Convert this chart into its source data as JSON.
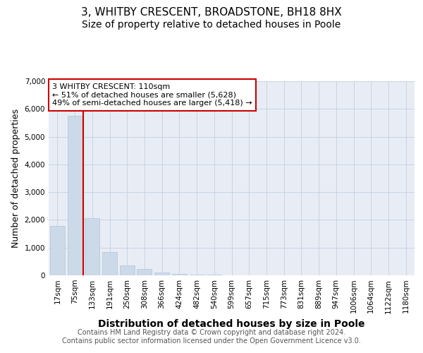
{
  "title1": "3, WHITBY CRESCENT, BROADSTONE, BH18 8HX",
  "title2": "Size of property relative to detached houses in Poole",
  "xlabel": "Distribution of detached houses by size in Poole",
  "ylabel": "Number of detached properties",
  "categories": [
    "17sqm",
    "75sqm",
    "133sqm",
    "191sqm",
    "250sqm",
    "308sqm",
    "366sqm",
    "424sqm",
    "482sqm",
    "540sqm",
    "599sqm",
    "657sqm",
    "715sqm",
    "773sqm",
    "831sqm",
    "889sqm",
    "947sqm",
    "1006sqm",
    "1064sqm",
    "1122sqm",
    "1180sqm"
  ],
  "values": [
    1780,
    5750,
    2050,
    840,
    360,
    220,
    100,
    60,
    20,
    15,
    10,
    5,
    2,
    0,
    0,
    0,
    0,
    0,
    0,
    0,
    0
  ],
  "bar_color": "#ccd9e8",
  "bar_edge_color": "#b0c4d8",
  "red_line_x": 1.5,
  "annotation_text": "3 WHITBY CRESCENT: 110sqm\n← 51% of detached houses are smaller (5,628)\n49% of semi-detached houses are larger (5,418) →",
  "annotation_box_color": "#ffffff",
  "annotation_border_color": "#cc0000",
  "ylim": [
    0,
    7000
  ],
  "yticks": [
    0,
    1000,
    2000,
    3000,
    4000,
    5000,
    6000,
    7000
  ],
  "grid_color": "#c8d4e4",
  "bg_color": "#e8edf5",
  "footer1": "Contains HM Land Registry data © Crown copyright and database right 2024.",
  "footer2": "Contains public sector information licensed under the Open Government Licence v3.0.",
  "title1_fontsize": 11,
  "title2_fontsize": 10,
  "xlabel_fontsize": 10,
  "ylabel_fontsize": 9,
  "tick_fontsize": 7.5,
  "annotation_fontsize": 8,
  "footer_fontsize": 7
}
